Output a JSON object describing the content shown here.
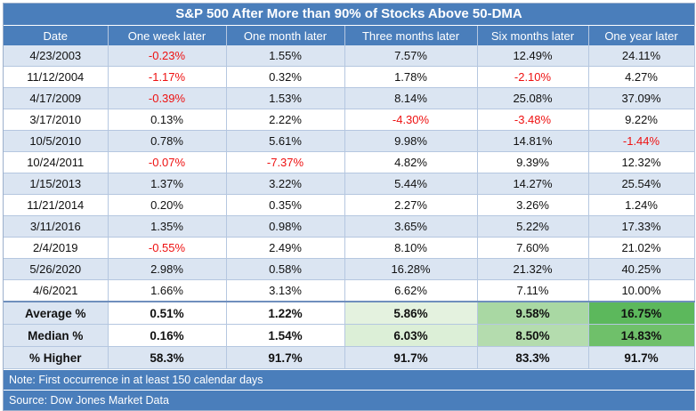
{
  "title": "S&P 500 After More than 90% of Stocks Above 50-DMA",
  "columns": [
    "Date",
    "One week later",
    "One month later",
    "Three months later",
    "Six months later",
    "One year later"
  ],
  "rows": [
    [
      "4/23/2003",
      "-0.23%",
      "1.55%",
      "7.57%",
      "12.49%",
      "24.11%"
    ],
    [
      "11/12/2004",
      "-1.17%",
      "0.32%",
      "1.78%",
      "-2.10%",
      "4.27%"
    ],
    [
      "4/17/2009",
      "-0.39%",
      "1.53%",
      "8.14%",
      "25.08%",
      "37.09%"
    ],
    [
      "3/17/2010",
      "0.13%",
      "2.22%",
      "-4.30%",
      "-3.48%",
      "9.22%"
    ],
    [
      "10/5/2010",
      "0.78%",
      "5.61%",
      "9.98%",
      "14.81%",
      "-1.44%"
    ],
    [
      "10/24/2011",
      "-0.07%",
      "-7.37%",
      "4.82%",
      "9.39%",
      "12.32%"
    ],
    [
      "1/15/2013",
      "1.37%",
      "3.22%",
      "5.44%",
      "14.27%",
      "25.54%"
    ],
    [
      "11/21/2014",
      "0.20%",
      "0.35%",
      "2.27%",
      "3.26%",
      "1.24%"
    ],
    [
      "3/11/2016",
      "1.35%",
      "0.98%",
      "3.65%",
      "5.22%",
      "17.33%"
    ],
    [
      "2/4/2019",
      "-0.55%",
      "2.49%",
      "8.10%",
      "7.60%",
      "21.02%"
    ],
    [
      "5/26/2020",
      "2.98%",
      "0.58%",
      "16.28%",
      "21.32%",
      "40.25%"
    ],
    [
      "4/6/2021",
      "1.66%",
      "3.13%",
      "6.62%",
      "7.11%",
      "10.00%"
    ]
  ],
  "summary": [
    {
      "label": "Average %",
      "values": [
        "0.51%",
        "1.22%",
        "5.86%",
        "9.58%",
        "16.75%"
      ],
      "colors": [
        "#ffffff",
        "#ffffff",
        "#e4f2df",
        "#a9d8a3",
        "#5cb85c"
      ]
    },
    {
      "label": "Median %",
      "values": [
        "0.16%",
        "1.54%",
        "6.03%",
        "8.50%",
        "14.83%"
      ],
      "colors": [
        "#ffffff",
        "#ffffff",
        "#dcefd7",
        "#b4dcae",
        "#6fc06a"
      ]
    },
    {
      "label": "% Higher",
      "values": [
        "58.3%",
        "91.7%",
        "91.7%",
        "83.3%",
        "91.7%"
      ],
      "colors": [
        "#dbe5f2",
        "#dbe5f2",
        "#dbe5f2",
        "#dbe5f2",
        "#dbe5f2"
      ]
    }
  ],
  "footnotes": {
    "note": "Note: First occurrence in at least 150 calendar days",
    "source": "Source: Dow Jones Market Data"
  },
  "colors": {
    "header_bg": "#4a7ebb",
    "negative": "#ee1111",
    "stripe": "#dbe5f2"
  }
}
